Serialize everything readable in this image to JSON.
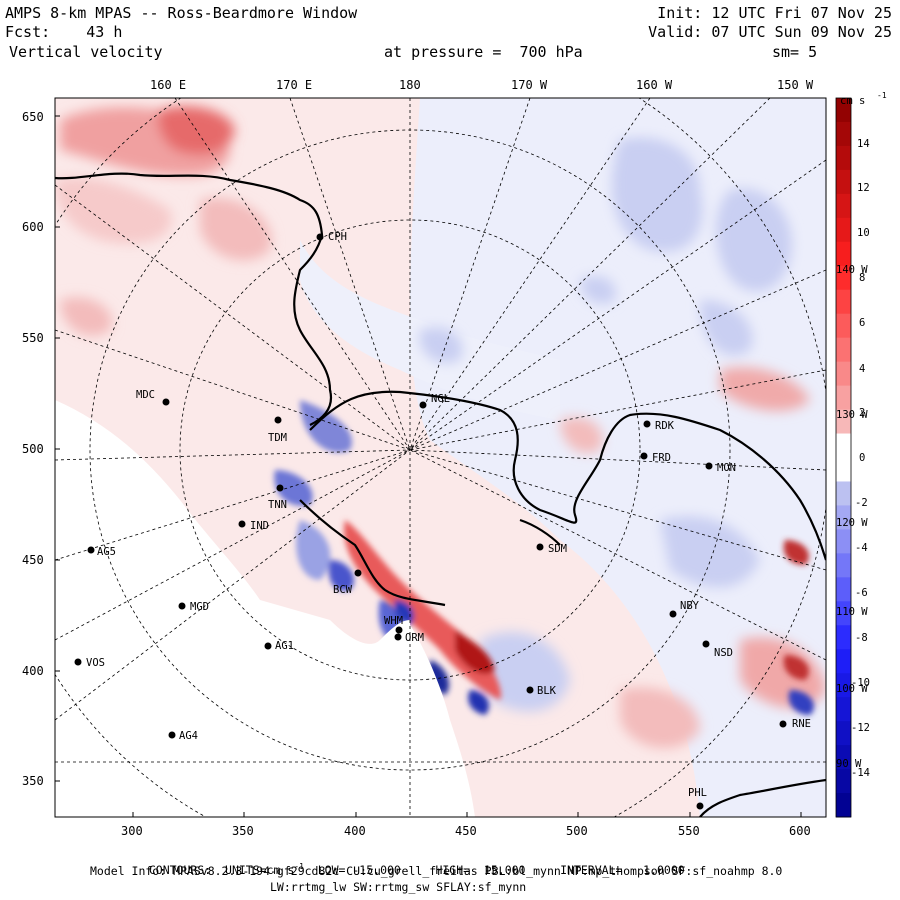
{
  "header": {
    "line1_left": "AMPS 8-km MPAS -- Ross-Beardmore Window",
    "line2_left": "Fcst:    43 h",
    "line3_left": "Vertical velocity",
    "line1_right": "Init: 12 UTC Fri 07 Nov 25",
    "line2_right": "Valid: 07 UTC Sun 09 Nov 25",
    "pressure": "at pressure =  700 hPa",
    "smooth": "sm= 5"
  },
  "lon_labels_top": [
    "160 E",
    "170 E",
    "180",
    "170 W",
    "160 W",
    "150 W"
  ],
  "lon_labels_inner": [
    "140 W",
    "130 W",
    "120 W",
    "110 W",
    "100 W",
    "90 W"
  ],
  "x_ticks": [
    "300",
    "350",
    "400",
    "450",
    "500",
    "550",
    "600"
  ],
  "y_ticks": [
    "650",
    "600",
    "550",
    "500",
    "450",
    "400",
    "350"
  ],
  "colorbar": {
    "units": "cm s",
    "units_exp": "-1",
    "labels": [
      "14",
      "12",
      "10",
      "8",
      "6",
      "4",
      "2",
      "0",
      "-2",
      "-4",
      "-6",
      "-8",
      "-10",
      "-12",
      "-14"
    ],
    "range": [
      -15,
      15
    ],
    "interval": 1,
    "colors": {
      "pos_max": "#8b0000",
      "pos_mid": "#ff2020",
      "pos_low": "#f6c4c4",
      "neg_low": "#c8cdf0",
      "neg_mid": "#2020ff",
      "neg_max": "#00008b"
    }
  },
  "stations": [
    {
      "name": "CPH"
    },
    {
      "name": "MDC"
    },
    {
      "name": "NGL"
    },
    {
      "name": "TDM"
    },
    {
      "name": "RDK"
    },
    {
      "name": "FRD"
    },
    {
      "name": "MON"
    },
    {
      "name": "TNN"
    },
    {
      "name": "IND"
    },
    {
      "name": "SDM"
    },
    {
      "name": "AG5"
    },
    {
      "name": "BCW"
    },
    {
      "name": "MGD"
    },
    {
      "name": "NBY"
    },
    {
      "name": "NSD"
    },
    {
      "name": "ORM"
    },
    {
      "name": "WHM"
    },
    {
      "name": "AG1"
    },
    {
      "name": "VOS"
    },
    {
      "name": "BLK"
    },
    {
      "name": "AG4"
    },
    {
      "name": "RNE"
    },
    {
      "name": "PHL"
    }
  ],
  "footer": {
    "contours_prefix": "CONTOURS:  UNITS=cm s",
    "contours_exp": "-1",
    "contours_rest": "  LOW= -15.000     HIGH=  15.000     INTERVAL=   1.0000",
    "model_info": "Model Info: MPASv8.2.3-194-gf29cd82c CU:cu_grell_freitas PBL:bl_mynn MP:mp_thompson SF:sf_noahmp 8.0",
    "model_info2": "LW:rrtmg_lw SW:rrtmg_sw SFLAY:sf_mynn"
  }
}
